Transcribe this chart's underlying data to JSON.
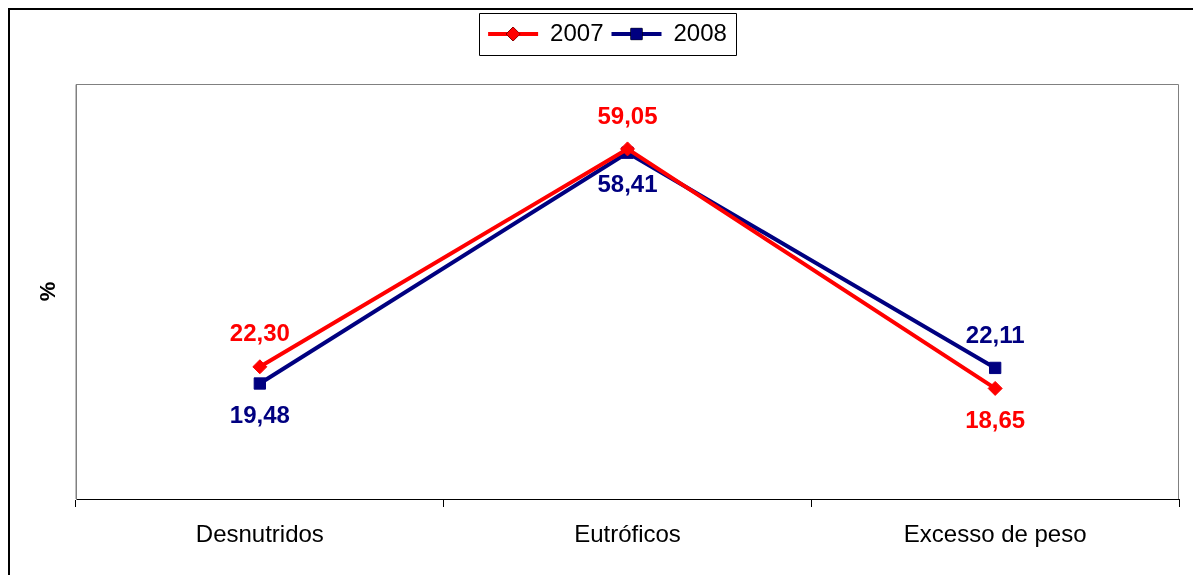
{
  "chart_data": {
    "type": "line",
    "ylabel": "%",
    "categories": [
      "Desnutridos",
      "Eutróficos",
      "Excesso de peso"
    ],
    "series": [
      {
        "name": "2007",
        "color": "#ff0000",
        "marker": "diamond",
        "values": [
          22.3,
          59.05,
          18.65
        ],
        "value_labels": [
          "22,30",
          "59,05",
          "18,65"
        ]
      },
      {
        "name": "2008",
        "color": "#000080",
        "marker": "square",
        "values": [
          19.48,
          58.41,
          22.11
        ],
        "value_labels": [
          "19,48",
          "58,41",
          "22,11"
        ]
      }
    ],
    "ylim": [
      0,
      70
    ],
    "tick_labels": "x",
    "legend": "top",
    "line_style": "solid"
  }
}
